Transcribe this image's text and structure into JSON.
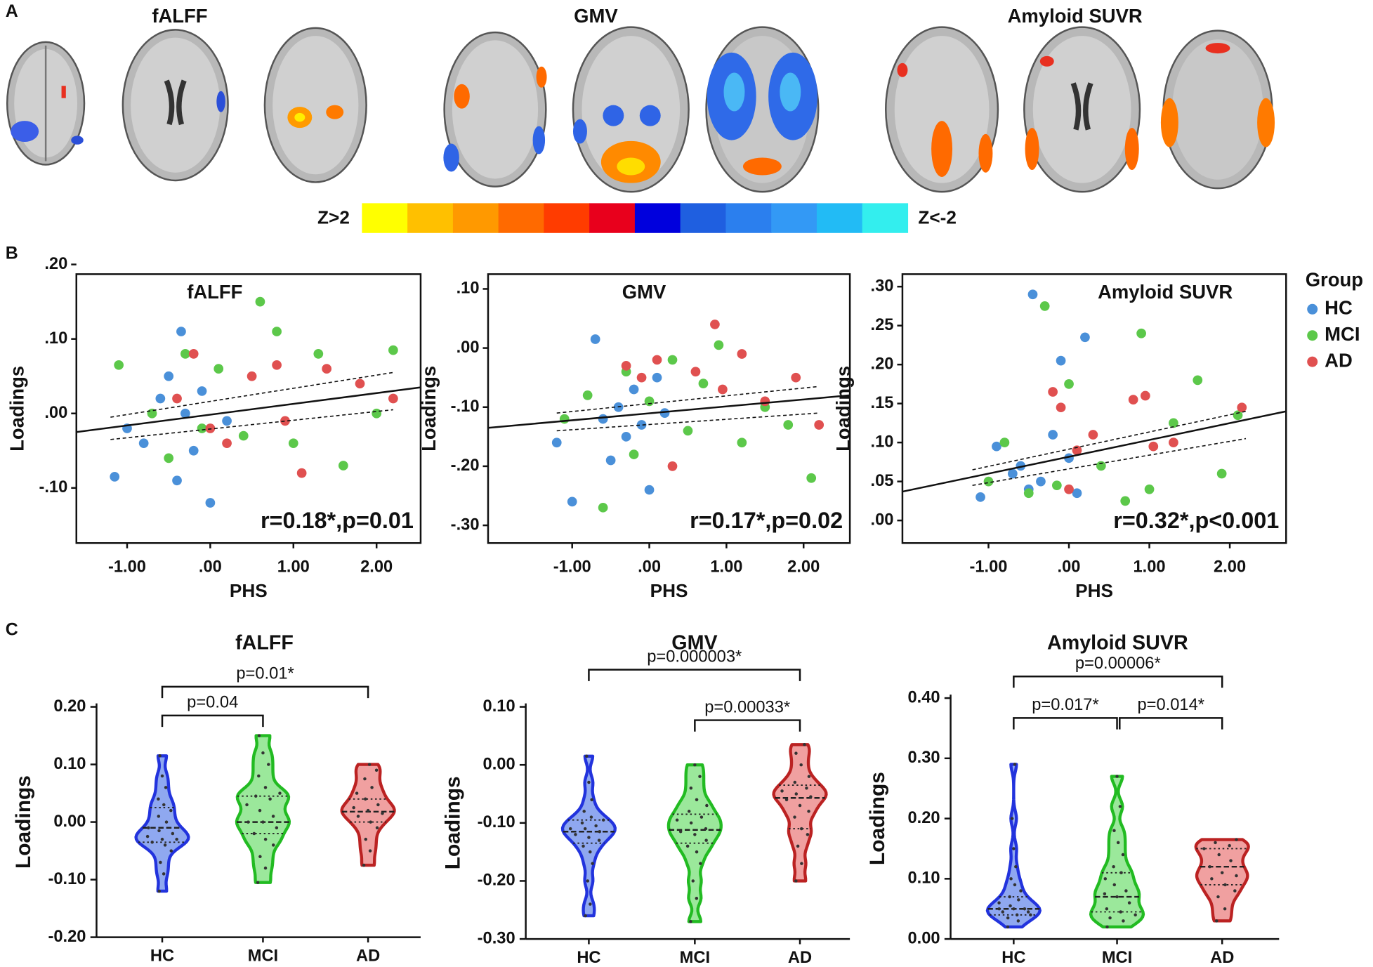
{
  "figure": {
    "panel_labels": [
      "A",
      "B",
      "C"
    ]
  },
  "panel_a": {
    "titles": [
      "fALFF",
      "GMV",
      "Amyloid SUVR"
    ],
    "colorbar": {
      "colors": [
        "#ffff00",
        "#ffc000",
        "#ff9900",
        "#ff6a00",
        "#ff3c00",
        "#e8001c",
        "#0000dd",
        "#1f5fe0",
        "#2b7fee",
        "#3399f5",
        "#22bbf5",
        "#33eeee"
      ],
      "labels": [
        "Z>2",
        "Z<-2"
      ]
    }
  },
  "chart_data": [
    {
      "type": "scatter",
      "title": "fALFF",
      "x_label": "PHS",
      "y_label": "Loadings",
      "annotation": "r=0.18*,p=0.01",
      "xlim": [
        -1.61,
        2.53
      ],
      "ylim": [
        -0.174,
        0.187
      ],
      "xticks": [
        {
          "value": -1,
          "label": "-1.00"
        },
        {
          "value": 0,
          "label": ".00"
        },
        {
          "value": 1,
          "label": "1.00"
        },
        {
          "value": 2,
          "label": "2.00"
        }
      ],
      "yticks": [
        {
          "value": 0.2,
          "label": ".20"
        },
        {
          "value": 0.1,
          "label": ".10"
        },
        {
          "value": 0,
          "label": ".00"
        },
        {
          "value": -0.1,
          "label": "-.10"
        }
      ],
      "series": [
        {
          "color": "#4a90d9",
          "x": [
            -1.15,
            -1.0,
            -0.8,
            -0.6,
            -0.5,
            -0.4,
            -0.35,
            -0.3,
            -0.2,
            -0.1,
            0.0,
            0.2
          ],
          "y": [
            -0.085,
            -0.02,
            -0.04,
            0.02,
            0.05,
            -0.09,
            0.11,
            0.0,
            -0.05,
            0.03,
            -0.12,
            -0.01
          ]
        },
        {
          "color": "#5cc84a",
          "x": [
            -1.1,
            -0.7,
            -0.5,
            -0.3,
            -0.1,
            0.1,
            0.4,
            0.6,
            0.8,
            1.0,
            1.3,
            1.6,
            2.0,
            2.2
          ],
          "y": [
            0.065,
            0.0,
            -0.06,
            0.08,
            -0.02,
            0.06,
            -0.03,
            0.15,
            0.11,
            -0.04,
            0.08,
            -0.07,
            0.0,
            0.085
          ]
        },
        {
          "color": "#e05050",
          "x": [
            -0.4,
            -0.2,
            0.0,
            0.2,
            0.5,
            0.8,
            0.9,
            1.1,
            1.4,
            1.8,
            2.2
          ],
          "y": [
            0.02,
            0.08,
            -0.02,
            -0.04,
            0.05,
            0.065,
            -0.01,
            -0.08,
            0.06,
            0.04,
            0.02
          ]
        }
      ],
      "fit": {
        "x": [
          -1.61,
          2.53
        ],
        "y": [
          -0.025,
          0.035
        ]
      },
      "ci_upper": {
        "x": [
          -1.2,
          2.2
        ],
        "y": [
          -0.005,
          0.055
        ]
      },
      "ci_lower": {
        "x": [
          -1.2,
          2.2
        ],
        "y": [
          -0.035,
          0.005
        ]
      }
    },
    {
      "type": "scatter",
      "title": "GMV",
      "x_label": "PHS",
      "y_label": "Loadings",
      "annotation": "r=0.17*,p=0.02",
      "xlim": [
        -2.09,
        2.6
      ],
      "ylim": [
        -0.33,
        0.125
      ],
      "xticks": [
        {
          "value": -1,
          "label": "-1.00"
        },
        {
          "value": 0,
          "label": ".00"
        },
        {
          "value": 1,
          "label": "1.00"
        },
        {
          "value": 2,
          "label": "2.00"
        }
      ],
      "yticks": [
        {
          "value": 0.1,
          "label": ".10"
        },
        {
          "value": 0,
          "label": ".00"
        },
        {
          "value": -0.1,
          "label": "-.10"
        },
        {
          "value": -0.2,
          "label": "-.20"
        },
        {
          "value": -0.3,
          "label": "-.30"
        }
      ],
      "series": [
        {
          "color": "#4a90d9",
          "x": [
            -1.2,
            -1.0,
            -0.7,
            -0.6,
            -0.4,
            -0.3,
            -0.2,
            -0.1,
            0.0,
            0.1,
            0.2,
            -0.5
          ],
          "y": [
            -0.16,
            -0.26,
            0.015,
            -0.12,
            -0.1,
            -0.15,
            -0.07,
            -0.13,
            -0.24,
            -0.05,
            -0.11,
            -0.19
          ]
        },
        {
          "color": "#5cc84a",
          "x": [
            -1.1,
            -0.8,
            -0.6,
            -0.3,
            -0.2,
            0.0,
            0.3,
            0.5,
            0.7,
            0.9,
            1.2,
            1.5,
            1.8,
            2.1
          ],
          "y": [
            -0.12,
            -0.08,
            -0.27,
            -0.04,
            -0.18,
            -0.09,
            -0.02,
            -0.14,
            -0.06,
            0.005,
            -0.16,
            -0.1,
            -0.13,
            -0.22
          ]
        },
        {
          "color": "#e05050",
          "x": [
            -0.3,
            -0.1,
            0.1,
            0.3,
            0.6,
            0.85,
            0.95,
            1.2,
            1.5,
            1.9,
            2.2
          ],
          "y": [
            -0.03,
            -0.05,
            -0.02,
            -0.2,
            -0.04,
            0.04,
            -0.07,
            -0.01,
            -0.09,
            -0.05,
            -0.13
          ]
        }
      ],
      "fit": {
        "x": [
          -2.09,
          2.6
        ],
        "y": [
          -0.135,
          -0.08
        ]
      },
      "ci_upper": {
        "x": [
          -1.2,
          2.2
        ],
        "y": [
          -0.11,
          -0.065
        ]
      },
      "ci_lower": {
        "x": [
          -1.2,
          2.2
        ],
        "y": [
          -0.14,
          -0.11
        ]
      }
    },
    {
      "type": "scatter",
      "title": "Amyloid SUVR",
      "x_label": "PHS",
      "y_label": "Loadings",
      "annotation": "r=0.32*,p<0.001",
      "legend": "right",
      "legend_title": "Group",
      "xlim": [
        -2.07,
        2.7
      ],
      "ylim": [
        -0.029,
        0.316
      ],
      "xticks": [
        {
          "value": -1,
          "label": "-1.00"
        },
        {
          "value": 0,
          "label": ".00"
        },
        {
          "value": 1,
          "label": "1.00"
        },
        {
          "value": 2,
          "label": "2.00"
        }
      ],
      "yticks": [
        {
          "value": 0.3,
          "label": ".30"
        },
        {
          "value": 0.25,
          "label": ".25"
        },
        {
          "value": 0.2,
          "label": ".20"
        },
        {
          "value": 0.15,
          "label": ".15"
        },
        {
          "value": 0.1,
          "label": ".10"
        },
        {
          "value": 0.05,
          "label": ".05"
        },
        {
          "value": 0,
          "label": ".00"
        }
      ],
      "series": [
        {
          "name": "HC",
          "color": "#4a90d9",
          "x": [
            -1.1,
            -0.9,
            -0.7,
            -0.5,
            -0.45,
            -0.35,
            -0.2,
            -0.1,
            0.0,
            0.1,
            0.2,
            -0.6
          ],
          "y": [
            0.03,
            0.095,
            0.06,
            0.04,
            0.29,
            0.05,
            0.11,
            0.205,
            0.08,
            0.035,
            0.235,
            0.07
          ]
        },
        {
          "name": "MCI",
          "color": "#5cc84a",
          "x": [
            -1.0,
            -0.8,
            -0.5,
            -0.3,
            -0.15,
            0.0,
            0.4,
            0.7,
            0.9,
            1.0,
            1.3,
            1.6,
            1.9,
            2.1
          ],
          "y": [
            0.05,
            0.1,
            0.035,
            0.275,
            0.045,
            0.175,
            0.07,
            0.025,
            0.24,
            0.04,
            0.125,
            0.18,
            0.06,
            0.135
          ]
        },
        {
          "name": "AD",
          "color": "#e05050",
          "x": [
            -0.2,
            -0.1,
            0.0,
            0.1,
            0.3,
            0.8,
            0.95,
            1.05,
            1.3,
            2.15
          ],
          "y": [
            0.165,
            0.145,
            0.04,
            0.09,
            0.11,
            0.155,
            0.16,
            0.095,
            0.1,
            0.145
          ]
        }
      ],
      "fit": {
        "x": [
          -2.07,
          2.7
        ],
        "y": [
          0.037,
          0.14
        ]
      },
      "ci_upper": {
        "x": [
          -1.2,
          2.2
        ],
        "y": [
          0.065,
          0.14
        ]
      },
      "ci_lower": {
        "x": [
          -1.2,
          2.2
        ],
        "y": [
          0.045,
          0.105
        ]
      }
    },
    {
      "type": "violin",
      "title": "fALFF",
      "y_label": "Loadings",
      "categories": [
        "HC",
        "MCI",
        "AD"
      ],
      "ylim": [
        -0.2,
        0.2
      ],
      "yticks": [
        {
          "value": 0.2,
          "label": "0.20"
        },
        {
          "value": 0.1,
          "label": "0.10"
        },
        {
          "value": 0,
          "label": "0.00"
        },
        {
          "value": -0.1,
          "label": "-0.10"
        },
        {
          "value": -0.2,
          "label": "-0.20"
        }
      ],
      "series": [
        {
          "color": "#2233dd",
          "fill": "#8fa8f0",
          "values": [
            -0.12,
            -0.09,
            -0.07,
            -0.05,
            -0.04,
            -0.035,
            -0.03,
            -0.03,
            -0.025,
            -0.02,
            -0.015,
            -0.01,
            0.0,
            0.01,
            0.02,
            0.03,
            0.04,
            0.06,
            0.08,
            0.115
          ],
          "q1": -0.035,
          "median": -0.01,
          "q3": 0.025
        },
        {
          "color": "#22bb22",
          "fill": "#9be89b",
          "values": [
            -0.105,
            -0.08,
            -0.06,
            -0.04,
            -0.03,
            -0.02,
            -0.01,
            0.0,
            0.0,
            0.01,
            0.02,
            0.03,
            0.04,
            0.045,
            0.05,
            0.06,
            0.08,
            0.1,
            0.12,
            0.15
          ],
          "q1": -0.02,
          "median": 0.0,
          "q3": 0.045
        },
        {
          "color": "#bb2222",
          "fill": "#f0a0a0",
          "values": [
            -0.075,
            -0.05,
            -0.03,
            -0.01,
            0.0,
            0.01,
            0.015,
            0.02,
            0.025,
            0.03,
            0.04,
            0.05,
            0.06,
            0.075,
            0.09,
            0.1
          ],
          "q1": 0.0,
          "median": 0.018,
          "q3": 0.04
        }
      ],
      "brackets": [
        {
          "from": 0,
          "to": 1,
          "y": 0.185,
          "label": "p=0.04"
        },
        {
          "from": 0,
          "to": 2,
          "y": 0.235,
          "label": "p=0.01*"
        }
      ]
    },
    {
      "type": "violin",
      "title": "GMV",
      "y_label": "Loadings",
      "categories": [
        "HC",
        "MCI",
        "AD"
      ],
      "ylim": [
        -0.3,
        0.1
      ],
      "yticks": [
        {
          "value": 0.1,
          "label": "0.10"
        },
        {
          "value": 0,
          "label": "0.00"
        },
        {
          "value": -0.1,
          "label": "-0.10"
        },
        {
          "value": -0.2,
          "label": "-0.20"
        },
        {
          "value": -0.3,
          "label": "-0.30"
        }
      ],
      "series": [
        {
          "color": "#2233dd",
          "fill": "#8fa8f0",
          "values": [
            -0.26,
            -0.24,
            -0.2,
            -0.17,
            -0.15,
            -0.14,
            -0.13,
            -0.125,
            -0.12,
            -0.115,
            -0.11,
            -0.11,
            -0.105,
            -0.1,
            -0.095,
            -0.09,
            -0.08,
            -0.06,
            -0.03,
            0.015
          ],
          "q1": -0.135,
          "median": -0.115,
          "q3": -0.095
        },
        {
          "color": "#22bb22",
          "fill": "#9be89b",
          "values": [
            -0.27,
            -0.23,
            -0.2,
            -0.17,
            -0.15,
            -0.14,
            -0.13,
            -0.12,
            -0.115,
            -0.11,
            -0.1,
            -0.095,
            -0.09,
            -0.08,
            -0.07,
            -0.06,
            -0.04,
            -0.02,
            0.0
          ],
          "q1": -0.135,
          "median": -0.112,
          "q3": -0.085
        },
        {
          "color": "#bb2222",
          "fill": "#f0a0a0",
          "values": [
            -0.2,
            -0.17,
            -0.14,
            -0.12,
            -0.11,
            -0.09,
            -0.08,
            -0.07,
            -0.06,
            -0.055,
            -0.05,
            -0.045,
            -0.04,
            -0.03,
            -0.02,
            0.0,
            0.02,
            0.035
          ],
          "q1": -0.11,
          "median": -0.057,
          "q3": -0.035
        }
      ],
      "brackets": [
        {
          "from": 0,
          "to": 2,
          "y": 0.164,
          "label": "p=0.000003*"
        },
        {
          "from": 1,
          "to": 2,
          "y": 0.077,
          "label": "p=0.00033*"
        }
      ]
    },
    {
      "type": "violin",
      "title": "Amyloid SUVR",
      "y_label": "Loadings",
      "categories": [
        "HC",
        "MCI",
        "AD"
      ],
      "ylim": [
        0,
        0.4
      ],
      "yticks": [
        {
          "value": 0.4,
          "label": "0.40"
        },
        {
          "value": 0.3,
          "label": "0.30"
        },
        {
          "value": 0.2,
          "label": "0.20"
        },
        {
          "value": 0.1,
          "label": "0.10"
        },
        {
          "value": 0,
          "label": "0.00"
        }
      ],
      "series": [
        {
          "color": "#2233dd",
          "fill": "#8fa8f0",
          "values": [
            0.02,
            0.03,
            0.035,
            0.04,
            0.04,
            0.045,
            0.045,
            0.05,
            0.05,
            0.05,
            0.055,
            0.06,
            0.065,
            0.07,
            0.08,
            0.09,
            0.1,
            0.12,
            0.15,
            0.2,
            0.29
          ],
          "q1": 0.04,
          "median": 0.05,
          "q3": 0.07
        },
        {
          "color": "#22bb22",
          "fill": "#9be89b",
          "values": [
            0.02,
            0.03,
            0.035,
            0.04,
            0.045,
            0.05,
            0.06,
            0.07,
            0.075,
            0.08,
            0.09,
            0.1,
            0.11,
            0.12,
            0.14,
            0.16,
            0.18,
            0.22,
            0.27
          ],
          "q1": 0.045,
          "median": 0.07,
          "q3": 0.11
        },
        {
          "color": "#bb2222",
          "fill": "#f0a0a0",
          "values": [
            0.03,
            0.05,
            0.07,
            0.08,
            0.09,
            0.1,
            0.105,
            0.11,
            0.12,
            0.13,
            0.14,
            0.15,
            0.155,
            0.16,
            0.165
          ],
          "q1": 0.09,
          "median": 0.12,
          "q3": 0.15
        }
      ],
      "brackets": [
        {
          "from": 0,
          "to": 2,
          "y": 0.436,
          "label": "p=0.00006*"
        },
        {
          "from": 0,
          "to": 1,
          "y": 0.367,
          "label": "p=0.017*"
        },
        {
          "from": 1,
          "to": 2,
          "y": 0.367,
          "label": "p=0.014*"
        }
      ]
    }
  ]
}
